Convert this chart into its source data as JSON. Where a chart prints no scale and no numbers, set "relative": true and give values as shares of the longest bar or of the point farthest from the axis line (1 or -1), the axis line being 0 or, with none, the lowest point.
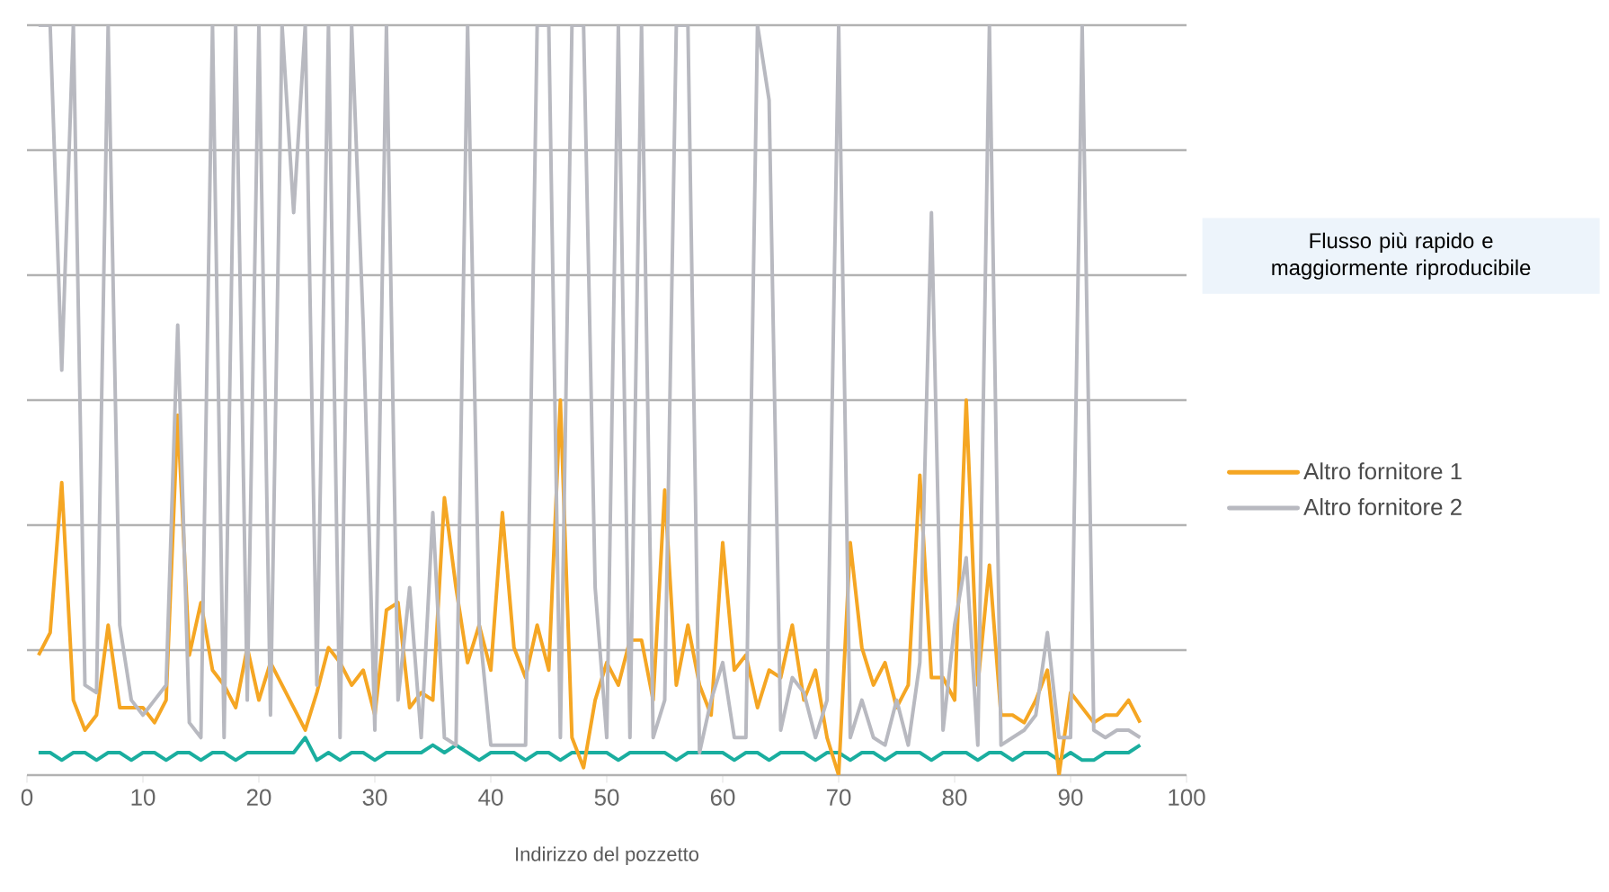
{
  "chart_data": {
    "type": "line",
    "relative": true,
    "xlabel": "Indirizzo del pozzetto",
    "annotations": [
      "Flusso più rapido e maggiormente riproducibile"
    ],
    "x": [
      1,
      2,
      3,
      4,
      5,
      6,
      7,
      8,
      9,
      10,
      11,
      12,
      13,
      14,
      15,
      16,
      17,
      18,
      19,
      20,
      21,
      22,
      23,
      24,
      25,
      26,
      27,
      28,
      29,
      30,
      31,
      32,
      33,
      34,
      35,
      36,
      37,
      38,
      39,
      40,
      41,
      42,
      43,
      44,
      45,
      46,
      47,
      48,
      49,
      50,
      51,
      52,
      53,
      54,
      55,
      56,
      57,
      58,
      59,
      60,
      61,
      62,
      63,
      64,
      65,
      66,
      67,
      68,
      69,
      70,
      71,
      72,
      73,
      74,
      75,
      76,
      77,
      78,
      79,
      80,
      81,
      82,
      83,
      84,
      85,
      86,
      87,
      88,
      89,
      90,
      91,
      92,
      93,
      94,
      95,
      96
    ],
    "xlim": [
      0,
      100
    ],
    "xticks": [
      0,
      10,
      20,
      30,
      40,
      50,
      60,
      70,
      80,
      90,
      100
    ],
    "grid": "y",
    "legend": "right",
    "series": [
      {
        "color": "#1aae9f",
        "values": [
          0.03,
          0.03,
          0.02,
          0.03,
          0.03,
          0.02,
          0.03,
          0.03,
          0.02,
          0.03,
          0.03,
          0.02,
          0.03,
          0.03,
          0.02,
          0.03,
          0.03,
          0.02,
          0.03,
          0.03,
          0.03,
          0.03,
          0.03,
          0.05,
          0.02,
          0.03,
          0.02,
          0.03,
          0.03,
          0.02,
          0.03,
          0.03,
          0.03,
          0.03,
          0.04,
          0.03,
          0.04,
          0.03,
          0.02,
          0.03,
          0.03,
          0.03,
          0.02,
          0.03,
          0.03,
          0.02,
          0.03,
          0.03,
          0.03,
          0.03,
          0.02,
          0.03,
          0.03,
          0.03,
          0.03,
          0.02,
          0.03,
          0.03,
          0.03,
          0.03,
          0.02,
          0.03,
          0.03,
          0.02,
          0.03,
          0.03,
          0.03,
          0.02,
          0.03,
          0.03,
          0.02,
          0.03,
          0.03,
          0.02,
          0.03,
          0.03,
          0.03,
          0.02,
          0.03,
          0.03,
          0.03,
          0.02,
          0.03,
          0.03,
          0.02,
          0.03,
          0.03,
          0.03,
          0.02,
          0.03,
          0.02,
          0.02,
          0.03,
          0.03,
          0.03,
          0.04
        ]
      },
      {
        "name": "Altro fornitore 1",
        "color": "#f5a623",
        "values": [
          0.16,
          0.19,
          0.39,
          0.1,
          0.06,
          0.08,
          0.2,
          0.09,
          0.09,
          0.09,
          0.07,
          0.1,
          0.48,
          0.16,
          0.23,
          0.14,
          0.12,
          0.09,
          0.17,
          0.1,
          0.15,
          0.12,
          0.09,
          0.06,
          0.11,
          0.17,
          0.15,
          0.12,
          0.14,
          0.08,
          0.22,
          0.23,
          0.09,
          0.11,
          0.1,
          0.37,
          0.25,
          0.15,
          0.2,
          0.14,
          0.35,
          0.17,
          0.13,
          0.2,
          0.14,
          0.5,
          0.05,
          0.01,
          0.1,
          0.15,
          0.12,
          0.18,
          0.18,
          0.1,
          0.38,
          0.12,
          0.2,
          0.12,
          0.08,
          0.31,
          0.14,
          0.16,
          0.09,
          0.14,
          0.13,
          0.2,
          0.1,
          0.14,
          0.05,
          0.0,
          0.31,
          0.17,
          0.12,
          0.15,
          0.09,
          0.12,
          0.4,
          0.13,
          0.13,
          0.1,
          0.5,
          0.12,
          0.28,
          0.08,
          0.08,
          0.07,
          0.1,
          0.14,
          0.0,
          0.11,
          0.09,
          0.07,
          0.08,
          0.08,
          0.1,
          0.07
        ]
      },
      {
        "name": "Altro fornitore 2",
        "color": "#b8b9c0",
        "values": [
          1,
          1,
          0.54,
          1,
          0.12,
          0.11,
          1,
          0.2,
          0.1,
          0.08,
          0.1,
          0.12,
          0.6,
          0.07,
          0.05,
          1,
          0.05,
          1,
          0.1,
          1,
          0.08,
          1,
          0.75,
          1,
          0.12,
          1,
          0.05,
          1,
          0.6,
          0.06,
          1,
          0.1,
          0.25,
          0.05,
          0.35,
          0.05,
          0.04,
          1,
          0.2,
          0.04,
          0.04,
          0.04,
          0.04,
          1,
          1,
          0.05,
          1,
          1,
          0.25,
          0.05,
          1,
          0.05,
          1,
          0.05,
          0.1,
          1,
          1,
          0.03,
          0.1,
          0.15,
          0.05,
          0.05,
          1,
          0.9,
          0.06,
          0.13,
          0.11,
          0.05,
          0.1,
          1,
          0.05,
          0.1,
          0.05,
          0.04,
          0.1,
          0.04,
          0.15,
          0.75,
          0.06,
          0.2,
          0.29,
          0.04,
          1,
          0.04,
          0.05,
          0.06,
          0.08,
          0.19,
          0.05,
          0.05,
          1,
          0.06,
          0.05,
          0.06,
          0.06,
          0.05
        ]
      }
    ]
  }
}
